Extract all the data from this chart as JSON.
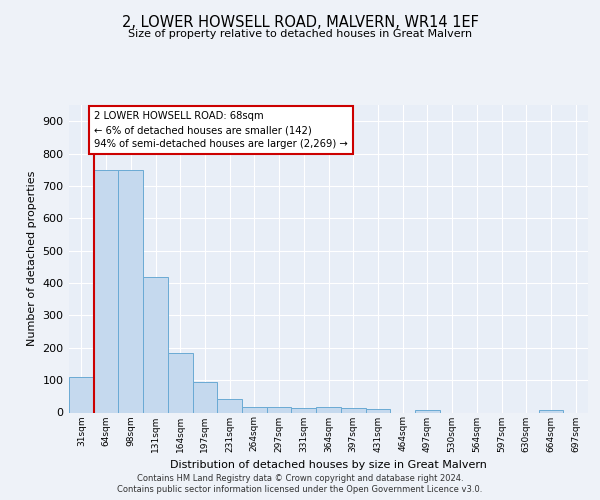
{
  "title": "2, LOWER HOWSELL ROAD, MALVERN, WR14 1EF",
  "subtitle": "Size of property relative to detached houses in Great Malvern",
  "xlabel": "Distribution of detached houses by size in Great Malvern",
  "ylabel": "Number of detached properties",
  "categories": [
    "31sqm",
    "64sqm",
    "98sqm",
    "131sqm",
    "164sqm",
    "197sqm",
    "231sqm",
    "264sqm",
    "297sqm",
    "331sqm",
    "364sqm",
    "397sqm",
    "431sqm",
    "464sqm",
    "497sqm",
    "530sqm",
    "564sqm",
    "597sqm",
    "630sqm",
    "664sqm",
    "697sqm"
  ],
  "values": [
    110,
    750,
    750,
    420,
    185,
    95,
    42,
    18,
    18,
    15,
    18,
    15,
    10,
    0,
    7,
    0,
    0,
    0,
    0,
    8,
    0
  ],
  "bar_color": "#c5d9ee",
  "bar_edge_color": "#6aaad4",
  "vline_color": "#cc0000",
  "annotation_text": "2 LOWER HOWSELL ROAD: 68sqm\n← 6% of detached houses are smaller (142)\n94% of semi-detached houses are larger (2,269) →",
  "annotation_box_color": "#ffffff",
  "annotation_box_edge_color": "#cc0000",
  "ylim": [
    0,
    950
  ],
  "yticks": [
    0,
    100,
    200,
    300,
    400,
    500,
    600,
    700,
    800,
    900
  ],
  "plot_bg": "#e8eef7",
  "fig_bg": "#eef2f8",
  "grid_color": "#ffffff",
  "footer_line1": "Contains HM Land Registry data © Crown copyright and database right 2024.",
  "footer_line2": "Contains public sector information licensed under the Open Government Licence v3.0."
}
